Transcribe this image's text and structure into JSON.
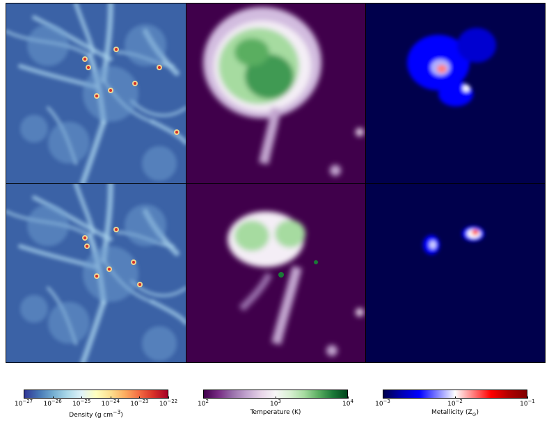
{
  "panels": [
    {
      "row": "top",
      "quantity": "density"
    },
    {
      "row": "top",
      "quantity": "temperature"
    },
    {
      "row": "top",
      "quantity": "metallicity"
    },
    {
      "row": "bottom",
      "quantity": "density"
    },
    {
      "row": "bottom",
      "quantity": "temperature"
    },
    {
      "row": "bottom",
      "quantity": "metallicity"
    }
  ],
  "colorbars": [
    {
      "label": "Density (g cm",
      "label_sup": "−3",
      "label_end": ")",
      "ticks": [
        {
          "base": "10",
          "exp": "−27"
        },
        {
          "base": "10",
          "exp": "−26"
        },
        {
          "base": "10",
          "exp": "−25"
        },
        {
          "base": "10",
          "exp": "−24"
        },
        {
          "base": "10",
          "exp": "−23"
        },
        {
          "base": "10",
          "exp": "−22"
        }
      ],
      "colors": [
        "#313695",
        "#4575b4",
        "#74add1",
        "#abd9e9",
        "#e0f3f8",
        "#ffffbf",
        "#fee090",
        "#fdae61",
        "#f46d43",
        "#d73027",
        "#a50026"
      ]
    },
    {
      "label": "Temperature (K)",
      "label_sup": "",
      "label_end": "",
      "ticks": [
        {
          "base": "10",
          "exp": "2"
        },
        {
          "base": "10",
          "exp": "3"
        },
        {
          "base": "10",
          "exp": "4"
        }
      ],
      "colors": [
        "#40004b",
        "#762a83",
        "#9970ab",
        "#c2a5cf",
        "#e7d4e8",
        "#f7f7f7",
        "#d9f0d3",
        "#a6dba0",
        "#5aae61",
        "#1b7837",
        "#00441b"
      ]
    },
    {
      "label": "Metallicity (Z",
      "label_sup": "",
      "label_sub": "⊙",
      "label_end": ")",
      "ticks": [
        {
          "base": "10",
          "exp": "−3"
        },
        {
          "base": "10",
          "exp": "−2"
        },
        {
          "base": "10",
          "exp": "−1"
        }
      ],
      "colors": [
        "#00004c",
        "#0000b0",
        "#0000ff",
        "#8080ff",
        "#ffffff",
        "#ff8080",
        "#ff0000",
        "#b00000",
        "#800000"
      ]
    }
  ],
  "colors": {
    "density_bg": "#3b62a6",
    "temperature_bg": "#40004b",
    "metallicity_bg": "#00004c"
  }
}
